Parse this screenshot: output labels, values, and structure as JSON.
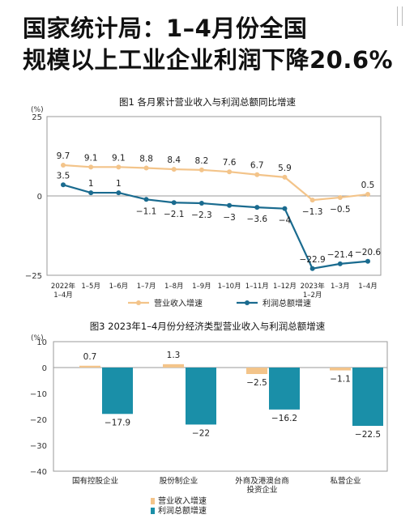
{
  "headline": {
    "line1": "国家统计局：1–4月份全国",
    "line2": "规模以上工业企业利润下降20.6%"
  },
  "chart_data": [
    {
      "type": "line",
      "title": "图1  各月累计营业收入与利润总额同比增速",
      "ylabel": "(%)",
      "ylim": [
        -25,
        25
      ],
      "yticks": [
        25,
        0,
        -25
      ],
      "categories": [
        "2022年\n1–4月",
        "1–5月",
        "1–6月",
        "1–7月",
        "1–8月",
        "1–9月",
        "1–10月",
        "1–11月",
        "1–12月",
        "2023年\n1–2月",
        "1–3月",
        "1–4月"
      ],
      "series": [
        {
          "name": "营业收入增速",
          "color": "#f3c48a",
          "values": [
            9.7,
            9.1,
            9.1,
            8.8,
            8.4,
            8.2,
            7.6,
            6.7,
            5.9,
            -1.3,
            -0.5,
            0.5
          ]
        },
        {
          "name": "利润总额增速",
          "color": "#1a6b8f",
          "values": [
            3.5,
            1.0,
            1.0,
            -1.1,
            -2.1,
            -2.3,
            -3.0,
            -3.6,
            -4.0,
            -22.9,
            -21.4,
            -20.6
          ]
        }
      ],
      "legend_position": "bottom"
    },
    {
      "type": "bar",
      "title": "图3  2023年1–4月份分经济类型营业收入与利润总额增速",
      "ylabel": "(%)",
      "ylim": [
        -40,
        10
      ],
      "yticks": [
        10,
        0,
        -10,
        -20,
        -30,
        -40
      ],
      "categories": [
        "国有控股企业",
        "股份制企业",
        "外商及港澳台商\n投资企业",
        "私营企业"
      ],
      "series": [
        {
          "name": "营业收入增速",
          "color": "#f3c48a",
          "values": [
            0.7,
            1.3,
            -2.5,
            -1.1
          ]
        },
        {
          "name": "利润总额增速",
          "color": "#1a8fa8",
          "values": [
            -17.9,
            -22.0,
            -16.2,
            -22.5
          ]
        }
      ],
      "legend_position": "bottom"
    }
  ]
}
